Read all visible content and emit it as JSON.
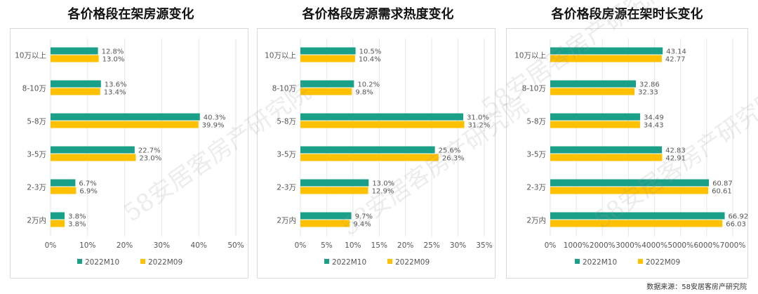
{
  "source_note": "数据来源：58安居客房产研究院",
  "watermark_text": "58安居客房产研究院",
  "colors": {
    "series_a": "#1aa089",
    "series_b": "#ffc000",
    "grid": "#e6e6e6",
    "text": "#555555"
  },
  "chart_data": [
    {
      "type": "bar",
      "orientation": "horizontal",
      "title": "各价格段在架房源变化",
      "categories": [
        "10万以上",
        "8-10万",
        "5-8万",
        "3-5万",
        "2-3万",
        "2万内"
      ],
      "series": [
        {
          "name": "2022M10",
          "values": [
            12.8,
            13.6,
            40.3,
            22.7,
            6.7,
            3.8
          ],
          "labels": [
            "12.8%",
            "13.6%",
            "40.3%",
            "22.7%",
            "6.7%",
            "3.8%"
          ]
        },
        {
          "name": "2022M09",
          "values": [
            13.0,
            13.4,
            39.9,
            23.0,
            6.9,
            3.8
          ],
          "labels": [
            "13.0%",
            "13.4%",
            "39.9%",
            "23.0%",
            "6.9%",
            "3.8%"
          ]
        }
      ],
      "xlim": [
        0,
        50
      ],
      "ticks": [
        "0%",
        "10%",
        "20%",
        "30%",
        "40%",
        "50%"
      ],
      "grid": true,
      "legend": "bottom"
    },
    {
      "type": "bar",
      "orientation": "horizontal",
      "title": "各价格段房源需求热度变化",
      "categories": [
        "10万以上",
        "8-10万",
        "5-8万",
        "3-5万",
        "2-3万",
        "2万内"
      ],
      "series": [
        {
          "name": "2022M10",
          "values": [
            10.5,
            10.2,
            31.0,
            25.6,
            13.0,
            9.7
          ],
          "labels": [
            "10.5%",
            "10.2%",
            "31.0%",
            "25.6%",
            "13.0%",
            "9.7%"
          ]
        },
        {
          "name": "2022M09",
          "values": [
            10.4,
            9.8,
            31.2,
            26.3,
            12.9,
            9.4
          ],
          "labels": [
            "10.4%",
            "9.8%",
            "31.2%",
            "26.3%",
            "12.9%",
            "9.4%"
          ]
        }
      ],
      "xlim": [
        0,
        35
      ],
      "ticks": [
        "0%",
        "5%",
        "10%",
        "15%",
        "20%",
        "25%",
        "30%",
        "35%"
      ],
      "grid": true,
      "legend": "bottom"
    },
    {
      "type": "bar",
      "orientation": "horizontal",
      "title": "各价格段房源在架时长变化",
      "categories": [
        "10万以上",
        "8-10万",
        "5-8万",
        "3-5万",
        "2-3万",
        "2万内"
      ],
      "series": [
        {
          "name": "2022M10",
          "values": [
            43.14,
            32.86,
            34.49,
            42.83,
            60.87,
            66.92
          ],
          "labels": [
            "43.14",
            "32.86",
            "34.49",
            "42.83",
            "60.87",
            "66.92"
          ]
        },
        {
          "name": "2022M09",
          "values": [
            42.77,
            32.33,
            34.43,
            42.91,
            60.61,
            66.03
          ],
          "labels": [
            "42.77",
            "32.33",
            "34.43",
            "42.91",
            "60.61",
            "66.03"
          ]
        }
      ],
      "xlim": [
        0,
        70
      ],
      "ticks": [
        "0%",
        "1000%",
        "2000%",
        "3000%",
        "4000%",
        "5000%",
        "6000%",
        "7000%"
      ],
      "grid": true,
      "legend": "bottom"
    }
  ]
}
